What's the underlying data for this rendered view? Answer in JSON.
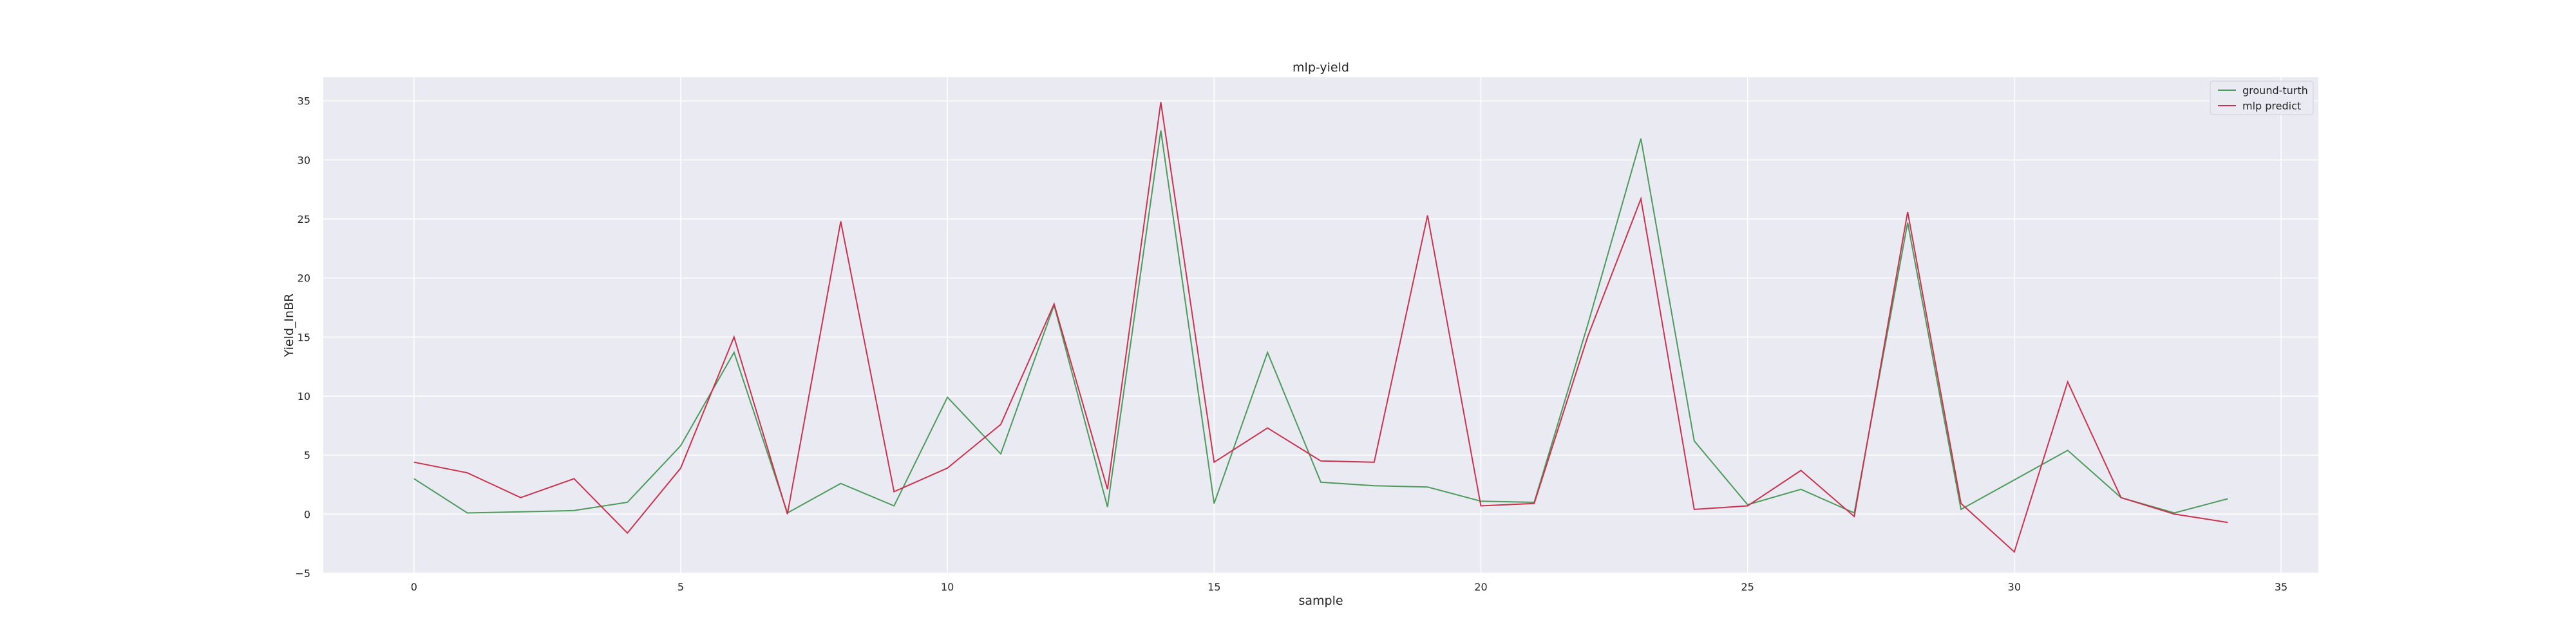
{
  "chart_data": {
    "type": "line",
    "title": "mlp-yield",
    "xlabel": "sample",
    "ylabel": "Yield_InBR",
    "xlim": [
      -1.7,
      35.7
    ],
    "ylim": [
      -5,
      37
    ],
    "xticks": [
      0,
      5,
      10,
      15,
      20,
      25,
      30,
      35
    ],
    "yticks": [
      -5,
      0,
      5,
      10,
      15,
      20,
      25,
      30,
      35
    ],
    "grid": true,
    "legend_position": "top-right",
    "x": [
      0,
      1,
      2,
      3,
      4,
      5,
      6,
      7,
      8,
      9,
      10,
      11,
      12,
      13,
      14,
      15,
      16,
      17,
      18,
      19,
      20,
      21,
      22,
      23,
      24,
      25,
      26,
      27,
      28,
      29,
      30,
      31,
      32,
      33,
      34
    ],
    "series": [
      {
        "name": "ground-turth",
        "color": "#4c9a5c",
        "values": [
          3.0,
          0.1,
          0.2,
          0.3,
          1.0,
          5.8,
          13.7,
          0.1,
          2.6,
          0.7,
          9.9,
          5.1,
          17.7,
          0.6,
          32.5,
          0.9,
          13.7,
          2.7,
          2.4,
          2.3,
          1.1,
          1.0,
          16.0,
          31.8,
          6.2,
          0.8,
          2.1,
          0.1,
          24.7,
          0.4,
          2.9,
          5.4,
          1.4,
          0.1,
          1.3
        ]
      },
      {
        "name": "mlp predict",
        "color": "#c9334d",
        "values": [
          4.4,
          3.5,
          1.4,
          3.0,
          -1.6,
          3.9,
          15.0,
          0.0,
          24.8,
          1.9,
          3.9,
          7.6,
          17.8,
          2.1,
          34.9,
          4.4,
          7.3,
          4.5,
          4.4,
          25.3,
          0.7,
          0.9,
          15.0,
          26.7,
          0.4,
          0.7,
          3.7,
          -0.2,
          25.6,
          0.9,
          -3.2,
          11.2,
          1.4,
          0.0,
          -0.7
        ]
      }
    ]
  }
}
